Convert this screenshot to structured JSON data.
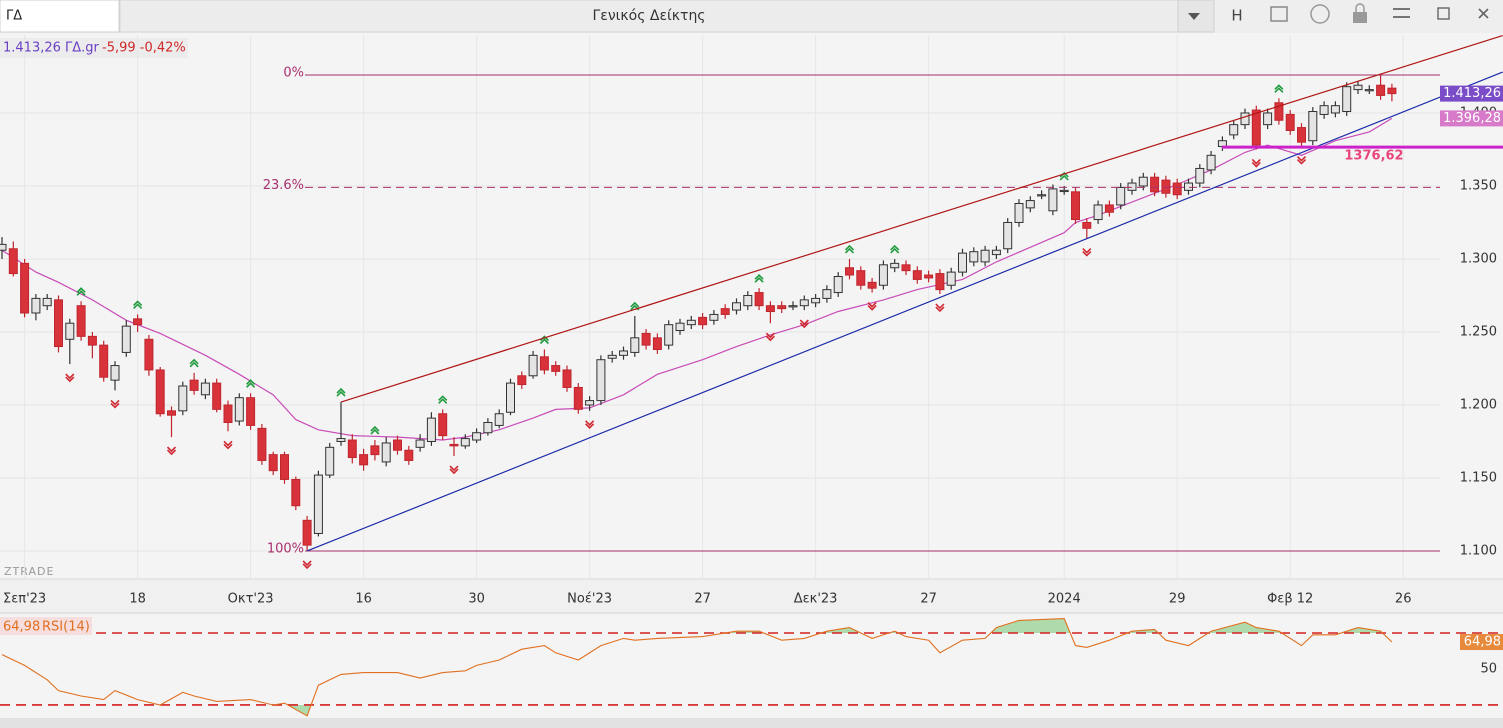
{
  "toolbar": {
    "symbol": "ΓΔ",
    "title": "Γενικός Δείκτης",
    "button": "H"
  },
  "quote": {
    "price_symbol": "1.413,26 ΓΔ.gr",
    "change": "-5,99 -0,42%"
  },
  "watermark": "ZTRADE",
  "chart_data": [
    {
      "type": "candlestick",
      "categories": [
        null,
        null,
        "Σεπ'23",
        null,
        null,
        null,
        null,
        null,
        null,
        null,
        null,
        null,
        "18",
        null,
        null,
        null,
        null,
        null,
        null,
        null,
        null,
        null,
        "Οκτ'23",
        null,
        null,
        null,
        null,
        null,
        null,
        null,
        null,
        null,
        "16",
        null,
        null,
        null,
        null,
        null,
        null,
        null,
        null,
        null,
        "30",
        null,
        null,
        null,
        null,
        null,
        null,
        null,
        null,
        null,
        "Νοέ'23",
        null,
        null,
        null,
        null,
        null,
        null,
        null,
        null,
        null,
        "27",
        null,
        null,
        null,
        null,
        null,
        null,
        null,
        null,
        null,
        "Δεκ'23",
        null,
        null,
        null,
        null,
        null,
        null,
        null,
        null,
        null,
        "27",
        null,
        null,
        null,
        null,
        null,
        null,
        null,
        null,
        null,
        null,
        null,
        "2024",
        null,
        null,
        null,
        null,
        null,
        null,
        null,
        null,
        null,
        "29",
        null,
        null,
        null,
        null,
        null,
        null,
        null,
        null,
        null,
        "Φεβ 12",
        null,
        null,
        null,
        null,
        null,
        null,
        null,
        null,
        null,
        "26"
      ],
      "ohlc": [
        [
          1306,
          1315,
          1300,
          1310
        ],
        [
          1307,
          1312,
          1288,
          1290
        ],
        [
          1297,
          1300,
          1260,
          1263
        ],
        [
          1263,
          1276,
          1258,
          1273
        ],
        [
          1268,
          1276,
          1265,
          1273
        ],
        [
          1272,
          1275,
          1236,
          1240
        ],
        [
          1245,
          1259,
          1228,
          1256
        ],
        [
          1268,
          1271,
          1244,
          1247
        ],
        [
          1247,
          1250,
          1232,
          1241
        ],
        [
          1241,
          1244,
          1216,
          1219
        ],
        [
          1217,
          1230,
          1210,
          1227
        ],
        [
          1236,
          1258,
          1233,
          1254
        ],
        [
          1259,
          1262,
          1250,
          1255
        ],
        [
          1245,
          1248,
          1220,
          1224
        ],
        [
          1224,
          1226,
          1192,
          1194
        ],
        [
          1196,
          1199,
          1178,
          1193
        ],
        [
          1196,
          1216,
          1193,
          1213
        ],
        [
          1217,
          1222,
          1207,
          1210
        ],
        [
          1207,
          1218,
          1204,
          1215
        ],
        [
          1215,
          1218,
          1195,
          1197
        ],
        [
          1200,
          1203,
          1182,
          1188
        ],
        [
          1189,
          1208,
          1186,
          1205
        ],
        [
          1205,
          1208,
          1183,
          1186
        ],
        [
          1184,
          1187,
          1159,
          1162
        ],
        [
          1166,
          1168,
          1152,
          1155
        ],
        [
          1166,
          1168,
          1146,
          1149
        ],
        [
          1149,
          1151,
          1128,
          1131
        ],
        [
          1121,
          1124,
          1100,
          1104
        ],
        [
          1112,
          1155,
          1110,
          1152
        ],
        [
          1152,
          1174,
          1150,
          1171
        ],
        [
          1175,
          1202,
          1172,
          1177
        ],
        [
          1176,
          1180,
          1160,
          1164
        ],
        [
          1166,
          1170,
          1155,
          1159
        ],
        [
          1172,
          1176,
          1162,
          1166
        ],
        [
          1161,
          1178,
          1158,
          1174
        ],
        [
          1176,
          1179,
          1166,
          1169
        ],
        [
          1169,
          1172,
          1159,
          1162
        ],
        [
          1171,
          1180,
          1168,
          1176
        ],
        [
          1175,
          1195,
          1172,
          1191
        ],
        [
          1194,
          1197,
          1176,
          1179
        ],
        [
          1173,
          1178,
          1165,
          1172
        ],
        [
          1172,
          1180,
          1170,
          1177
        ],
        [
          1176,
          1184,
          1174,
          1181
        ],
        [
          1181,
          1191,
          1179,
          1188
        ],
        [
          1186,
          1197,
          1184,
          1194
        ],
        [
          1195,
          1218,
          1193,
          1215
        ],
        [
          1220,
          1223,
          1211,
          1214
        ],
        [
          1220,
          1237,
          1218,
          1234
        ],
        [
          1233,
          1238,
          1221,
          1224
        ],
        [
          1227,
          1230,
          1220,
          1223
        ],
        [
          1224,
          1227,
          1209,
          1212
        ],
        [
          1212,
          1215,
          1194,
          1197
        ],
        [
          1200,
          1206,
          1196,
          1203
        ],
        [
          1203,
          1234,
          1200,
          1231
        ],
        [
          1232,
          1237,
          1229,
          1234
        ],
        [
          1234,
          1240,
          1231,
          1237
        ],
        [
          1236,
          1261,
          1233,
          1246
        ],
        [
          1249,
          1252,
          1238,
          1241
        ],
        [
          1246,
          1249,
          1235,
          1238
        ],
        [
          1241,
          1258,
          1238,
          1255
        ],
        [
          1251,
          1259,
          1248,
          1256
        ],
        [
          1255,
          1261,
          1252,
          1258
        ],
        [
          1260,
          1263,
          1252,
          1255
        ],
        [
          1258,
          1265,
          1255,
          1262
        ],
        [
          1266,
          1269,
          1259,
          1262
        ],
        [
          1265,
          1273,
          1262,
          1270
        ],
        [
          1268,
          1278,
          1265,
          1275
        ],
        [
          1277,
          1280,
          1265,
          1268
        ],
        [
          1268,
          1271,
          1256,
          1264
        ],
        [
          1268,
          1271,
          1263,
          1266
        ],
        [
          1268,
          1271,
          1265,
          1268
        ],
        [
          1268,
          1275,
          1265,
          1272
        ],
        [
          1270,
          1276,
          1267,
          1273
        ],
        [
          1273,
          1282,
          1270,
          1279
        ],
        [
          1277,
          1291,
          1274,
          1288
        ],
        [
          1294,
          1300,
          1286,
          1289
        ],
        [
          1292,
          1295,
          1279,
          1282
        ],
        [
          1284,
          1287,
          1277,
          1280
        ],
        [
          1282,
          1299,
          1279,
          1296
        ],
        [
          1294,
          1300,
          1291,
          1297
        ],
        [
          1296,
          1299,
          1289,
          1292
        ],
        [
          1292,
          1295,
          1283,
          1286
        ],
        [
          1289,
          1292,
          1284,
          1287
        ],
        [
          1290,
          1293,
          1276,
          1279
        ],
        [
          1282,
          1294,
          1279,
          1291
        ],
        [
          1291,
          1307,
          1288,
          1304
        ],
        [
          1298,
          1308,
          1295,
          1305
        ],
        [
          1298,
          1309,
          1295,
          1306
        ],
        [
          1303,
          1309,
          1300,
          1306
        ],
        [
          1307,
          1328,
          1304,
          1325
        ],
        [
          1325,
          1341,
          1322,
          1338
        ],
        [
          1335,
          1343,
          1332,
          1340
        ],
        [
          1344,
          1347,
          1341,
          1344
        ],
        [
          1333,
          1351,
          1330,
          1348
        ],
        [
          1347,
          1350,
          1344,
          1347
        ],
        [
          1346,
          1349,
          1324,
          1327
        ],
        [
          1325,
          1328,
          1314,
          1321
        ],
        [
          1327,
          1340,
          1324,
          1337
        ],
        [
          1337,
          1340,
          1329,
          1332
        ],
        [
          1337,
          1352,
          1334,
          1349
        ],
        [
          1347,
          1355,
          1344,
          1352
        ],
        [
          1350,
          1359,
          1347,
          1356
        ],
        [
          1356,
          1359,
          1343,
          1346
        ],
        [
          1354,
          1357,
          1342,
          1345
        ],
        [
          1352,
          1355,
          1341,
          1344
        ],
        [
          1347,
          1355,
          1344,
          1352
        ],
        [
          1352,
          1365,
          1349,
          1362
        ],
        [
          1361,
          1374,
          1358,
          1371
        ],
        [
          1377,
          1384,
          1374,
          1381
        ],
        [
          1385,
          1395,
          1382,
          1392
        ],
        [
          1392,
          1403,
          1389,
          1400
        ],
        [
          1402,
          1405,
          1375,
          1378
        ],
        [
          1392,
          1403,
          1389,
          1400
        ],
        [
          1407,
          1410,
          1392,
          1395
        ],
        [
          1399,
          1402,
          1385,
          1388
        ],
        [
          1390,
          1393,
          1377,
          1380
        ],
        [
          1381,
          1404,
          1378,
          1401
        ],
        [
          1399,
          1408,
          1396,
          1405
        ],
        [
          1400,
          1408,
          1397,
          1405
        ],
        [
          1401,
          1421,
          1398,
          1418
        ],
        [
          1416,
          1422,
          1413,
          1419
        ],
        [
          1416,
          1419,
          1413,
          1416
        ],
        [
          1419,
          1427,
          1409,
          1412
        ],
        [
          1417,
          1420,
          1408,
          1413.26
        ],
        null
      ],
      "up_color": "#e4e4e4",
      "down_color": "#d8333b",
      "ylim": [
        1081.5,
        1453.4
      ],
      "yticks": [
        {
          "value": 1100,
          "label": "1.100"
        },
        {
          "value": 1150,
          "label": "1.150"
        },
        {
          "value": 1200,
          "label": "1.200"
        },
        {
          "value": 1250,
          "label": "1.250"
        },
        {
          "value": 1300,
          "label": "1.300"
        },
        {
          "value": 1350,
          "label": "1.350"
        },
        {
          "value": 1400,
          "label": "1.400"
        }
      ],
      "grid": true,
      "ma": {
        "color": "#c84cb8",
        "x": [
          0,
          3,
          5,
          8,
          11,
          14,
          18,
          21,
          24,
          26,
          28,
          31,
          35,
          39,
          41,
          44,
          47,
          49,
          52,
          55,
          58,
          62,
          65,
          68,
          71,
          74,
          78,
          81,
          85,
          88,
          91,
          94,
          95,
          97,
          101,
          104,
          107,
          110,
          112,
          115,
          118,
          121,
          123
        ],
        "values": [
          1306,
          1291,
          1284,
          1272,
          1258,
          1249,
          1234,
          1221,
          1207,
          1190,
          1183,
          1179,
          1178,
          1176,
          1178,
          1183,
          1191,
          1197,
          1198,
          1207,
          1221,
          1231,
          1240,
          1248,
          1255,
          1264,
          1272,
          1279,
          1286,
          1298,
          1308,
          1318,
          1325,
          1330,
          1342,
          1351,
          1361,
          1373,
          1378,
          1371,
          1381,
          1387,
          1396.28
        ]
      },
      "trendlines": [
        {
          "color": "#b01515",
          "x": [
            30,
            132.8
          ],
          "y": [
            1202,
            1453
          ]
        },
        {
          "color": "#1a2aa8",
          "x": [
            27,
            132.8
          ],
          "y": [
            1100,
            1428
          ]
        }
      ],
      "fib_levels": [
        {
          "label": "0%",
          "value": 1426
        },
        {
          "label": "23.6%",
          "value": 1349,
          "dashed": true
        },
        {
          "label": "100%",
          "value": 1100
        }
      ],
      "level": {
        "value": 1376.62,
        "label": "1376,62",
        "color": "#cc22cc"
      },
      "up_signals": [
        7,
        12,
        17,
        22,
        30,
        33,
        39,
        48,
        56,
        67,
        75,
        79,
        94,
        113
      ],
      "down_signals": [
        6,
        10,
        15,
        20,
        27,
        40,
        52,
        68,
        71,
        77,
        83,
        96,
        111,
        115
      ],
      "last_label": {
        "value": 1413.26,
        "label": "1.413,26"
      },
      "ma_label": {
        "value": 1396.28,
        "label": "1.396,28"
      }
    },
    {
      "type": "line",
      "name": "RSI(14)",
      "color": "#e07020",
      "x": [
        0,
        2,
        4,
        5,
        7,
        9,
        10,
        12,
        14,
        16,
        17,
        19,
        22,
        24,
        25,
        27,
        28,
        30,
        32,
        33,
        35,
        37,
        39,
        41,
        42,
        44,
        46,
        48,
        49,
        51,
        53,
        55,
        56,
        58,
        62,
        65,
        67,
        69,
        71,
        73,
        75,
        77,
        79,
        80,
        82,
        83,
        85,
        87,
        88,
        90,
        94,
        95,
        96,
        98,
        100,
        102,
        103,
        105,
        107,
        110,
        111,
        113,
        115,
        116,
        118,
        120,
        122,
        123
      ],
      "values": [
        58,
        52,
        44,
        38,
        35,
        33,
        38,
        33,
        30,
        37,
        35,
        32,
        33,
        30,
        31,
        24,
        41,
        47,
        48,
        48,
        48,
        45,
        48,
        49,
        52,
        55,
        61,
        63,
        59,
        55,
        63,
        67,
        66,
        67,
        68,
        71,
        71,
        66,
        67,
        71,
        73,
        67,
        71,
        68,
        66,
        59,
        66,
        67,
        73,
        77,
        78,
        63,
        62,
        66,
        71,
        72,
        66,
        63,
        71,
        76,
        73,
        71,
        63,
        69,
        69,
        73,
        71,
        64.98
      ],
      "ylim": [
        26.1,
        80
      ],
      "yticks": [
        50
      ],
      "levels": [
        70,
        30
      ],
      "last_label": {
        "value": 64.98,
        "label": "64,98"
      }
    }
  ]
}
